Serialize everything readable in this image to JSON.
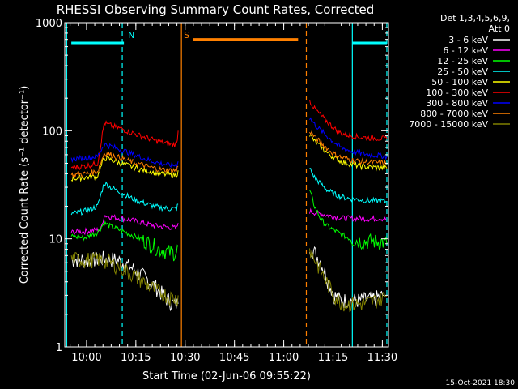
{
  "chart_data": {
    "type": "line",
    "title": "RHESSI Observing Summary Count Rates, Corrected",
    "xlabel": "Start Time (02-Jun-06 09:55:22)",
    "ylabel": "Corrected Count Rate (s⁻¹ detector⁻¹)",
    "y_scale": "log",
    "ylim": [
      1,
      1000
    ],
    "xlim": [
      -2.0,
      96.5
    ],
    "x_units": "minutes after 09:55:22",
    "x_ticks": [
      {
        "label": "10:00",
        "value": 4.63
      },
      {
        "label": "10:15",
        "value": 19.63
      },
      {
        "label": "10:30",
        "value": 34.63
      },
      {
        "label": "10:45",
        "value": 49.63
      },
      {
        "label": "11:00",
        "value": 64.63
      },
      {
        "label": "11:15",
        "value": 79.63
      },
      {
        "label": "11:30",
        "value": 94.63
      }
    ],
    "y_ticks": [
      {
        "label": "1",
        "value": 1
      },
      {
        "label": "10",
        "value": 10
      },
      {
        "label": "100",
        "value": 100
      },
      {
        "label": "1000",
        "value": 1000
      }
    ],
    "legend": {
      "header": [
        "Det 1,3,4,5,6,9,",
        "Att 0"
      ],
      "placement": "right"
    },
    "annotations": [
      {
        "label": "N",
        "color": "#00ffff",
        "x": 16
      },
      {
        "label": "S",
        "color": "#ff8000",
        "x": 33
      }
    ],
    "intervals": [
      {
        "name": "night-start",
        "color": "#00ffff",
        "x1": 0,
        "x2": 16,
        "y": 650
      },
      {
        "name": "saa",
        "color": "#ff8000",
        "x1": 37,
        "x2": 69,
        "y": 700
      },
      {
        "name": "night-end",
        "color": "#00ffff",
        "x1": 85.5,
        "x2": 96,
        "y": 650
      }
    ],
    "vlines": [
      {
        "name": "night-start-solid",
        "color": "#00ffff",
        "x": -1.4,
        "style": "solid"
      },
      {
        "name": "night-end-dashed",
        "color": "#00ffff",
        "x": 15.5,
        "style": "dashed"
      },
      {
        "name": "saa-start-solid",
        "color": "#ff8000",
        "x": 33.5,
        "style": "solid"
      },
      {
        "name": "saa-end-dashed",
        "color": "#ff8000",
        "x": 71.5,
        "style": "dashed"
      },
      {
        "name": "night2-start-solid",
        "color": "#00ffff",
        "x": 85.5,
        "style": "solid"
      },
      {
        "name": "night2-end-dashed",
        "color": "#00ffff",
        "x": 96,
        "style": "dashed"
      }
    ],
    "series": [
      {
        "name": "3 - 6 keV",
        "color": "#ffffff",
        "segments": [
          {
            "x": [
              0,
              5,
              10,
              14,
              18,
              22,
              26,
              29,
              31,
              32.5
            ],
            "y": [
              6.5,
              6.3,
              6.6,
              6.4,
              5.5,
              4.5,
              3.5,
              2.8,
              2.5,
              2.5
            ]
          },
          {
            "x": [
              72.5,
              74,
              76,
              78,
              80,
              82,
              85,
              88,
              92,
              95
            ],
            "y": [
              8.5,
              7.5,
              6.0,
              4.2,
              3.0,
              2.7,
              2.7,
              2.7,
              2.8,
              3.0
            ]
          }
        ]
      },
      {
        "name": "6 - 12 keV",
        "color": "#ff00ff",
        "segments": [
          {
            "x": [
              0,
              5,
              9,
              10,
              12,
              15,
              18,
              21,
              24,
              27,
              30,
              32,
              32.5
            ],
            "y": [
              11.5,
              11.8,
              12.2,
              16.5,
              16.0,
              15.5,
              15.0,
              14.2,
              13.5,
              13.0,
              12.8,
              12.5,
              14.0
            ]
          },
          {
            "x": [
              72.5,
              74,
              76,
              78,
              80,
              83,
              86,
              88,
              91,
              94,
              96
            ],
            "y": [
              18.0,
              17.5,
              17.0,
              16.5,
              16.0,
              15.5,
              15.5,
              15.5,
              15.3,
              15.5,
              15.0
            ]
          }
        ]
      },
      {
        "name": "12 - 25 keV",
        "color": "#00ff00",
        "segments": [
          {
            "x": [
              0,
              4,
              8,
              10,
              12,
              15,
              18,
              21,
              24,
              27,
              30,
              32,
              32.5
            ],
            "y": [
              10.5,
              10.2,
              11.5,
              14.0,
              13.0,
              12.0,
              11.0,
              10.0,
              9.0,
              8.0,
              7.5,
              7.5,
              8.5
            ]
          },
          {
            "x": [
              72.5,
              74,
              76,
              78,
              80,
              82,
              85,
              88,
              91,
              94,
              96
            ],
            "y": [
              28.0,
              20.0,
              15.0,
              13.0,
              12.0,
              11.0,
              10.0,
              9.5,
              9.5,
              9.5,
              9.0
            ]
          }
        ]
      },
      {
        "name": "25 - 50 keV",
        "color": "#00ffff",
        "segments": [
          {
            "x": [
              0,
              4,
              8,
              10,
              12,
              15,
              18,
              21,
              24,
              27,
              30,
              32,
              32.5
            ],
            "y": [
              17.0,
              18.0,
              20.0,
              33.0,
              30.0,
              27.0,
              24.0,
              22.0,
              20.5,
              19.5,
              19.0,
              19.0,
              21.0
            ]
          },
          {
            "x": [
              72.5,
              74,
              76,
              78,
              80,
              82,
              85,
              88,
              91,
              94,
              96
            ],
            "y": [
              45.0,
              37.0,
              32.0,
              28.0,
              26.0,
              24.5,
              23.5,
              23.0,
              22.5,
              22.5,
              22.0
            ]
          }
        ]
      },
      {
        "name": "50 - 100 keV",
        "color": "#ffff00",
        "segments": [
          {
            "x": [
              0,
              4,
              8,
              10,
              12,
              15,
              18,
              21,
              24,
              27,
              30,
              32,
              32.5
            ],
            "y": [
              36.0,
              37.0,
              38.0,
              56.0,
              54.0,
              50.0,
              47.0,
              44.0,
              42.0,
              40.0,
              39.0,
              39.0,
              43.0
            ]
          },
          {
            "x": [
              72.5,
              74,
              76,
              78,
              80,
              82,
              85,
              88,
              91,
              94,
              96
            ],
            "y": [
              92.0,
              80.0,
              70.0,
              62.0,
              56.0,
              52.0,
              49.0,
              47.0,
              46.0,
              45.5,
              45.0
            ]
          }
        ]
      },
      {
        "name": "100 - 300 keV",
        "color": "#ff0000",
        "segments": [
          {
            "x": [
              0,
              4,
              8,
              10,
              12,
              15,
              18,
              21,
              24,
              27,
              30,
              32,
              32.5
            ],
            "y": [
              46.0,
              47.0,
              50.0,
              118.0,
              112.0,
              105.0,
              97.0,
              90.0,
              84.0,
              79.0,
              75.0,
              75.0,
              100.0
            ]
          },
          {
            "x": [
              72.5,
              74,
              76,
              78,
              80,
              82,
              85,
              88,
              91,
              94,
              96
            ],
            "y": [
              190.0,
              160.0,
              138.0,
              120.0,
              105.0,
              95.0,
              90.0,
              87.0,
              86.0,
              85.0,
              84.0
            ]
          }
        ]
      },
      {
        "name": "300 - 800 keV",
        "color": "#0000ff",
        "segments": [
          {
            "x": [
              0,
              4,
              8,
              10,
              12,
              15,
              18,
              21,
              24,
              27,
              30,
              32,
              32.5
            ],
            "y": [
              55.0,
              56.0,
              58.0,
              75.0,
              72.0,
              67.0,
              62.0,
              57.0,
              53.0,
              50.0,
              48.0,
              48.0,
              52.0
            ]
          },
          {
            "x": [
              72.5,
              74,
              76,
              78,
              80,
              82,
              85,
              88,
              91,
              94,
              96
            ],
            "y": [
              132.0,
              115.0,
              100.0,
              88.0,
              78.0,
              70.0,
              65.0,
              62.0,
              60.0,
              59.0,
              58.0
            ]
          }
        ]
      },
      {
        "name": "800 - 7000 keV",
        "color": "#ff8000",
        "segments": [
          {
            "x": [
              0,
              4,
              8,
              10,
              12,
              15,
              18,
              21,
              24,
              27,
              30,
              32,
              32.5
            ],
            "y": [
              39.0,
              40.0,
              42.0,
              62.0,
              60.0,
              56.0,
              52.0,
              49.0,
              46.0,
              44.0,
              43.0,
              43.0,
              47.0
            ]
          },
          {
            "x": [
              72.5,
              74,
              76,
              78,
              80,
              82,
              85,
              88,
              91,
              94,
              96
            ],
            "y": [
              100.0,
              88.0,
              77.0,
              68.0,
              61.0,
              57.0,
              54.0,
              52.0,
              51.0,
              50.5,
              50.0
            ]
          }
        ]
      },
      {
        "name": "7000 - 15000 keV",
        "color": "#808000",
        "segments": [
          {
            "x": [
              0,
              4,
              8,
              10,
              12,
              15,
              18,
              21,
              24,
              27,
              30,
              32,
              32.5
            ],
            "y": [
              6.5,
              6.4,
              6.5,
              6.3,
              6.0,
              5.5,
              4.8,
              4.2,
              3.6,
              3.2,
              2.9,
              2.8,
              3.0
            ]
          },
          {
            "x": [
              72.5,
              74,
              76,
              78,
              80,
              82,
              85,
              88,
              91,
              94,
              96
            ],
            "y": [
              8.0,
              6.5,
              5.0,
              3.8,
              3.0,
              2.6,
              2.5,
              2.5,
              2.6,
              2.8,
              3.0
            ]
          }
        ]
      }
    ]
  },
  "footer": {
    "timestamp": "15-Oct-2021 18:30"
  }
}
